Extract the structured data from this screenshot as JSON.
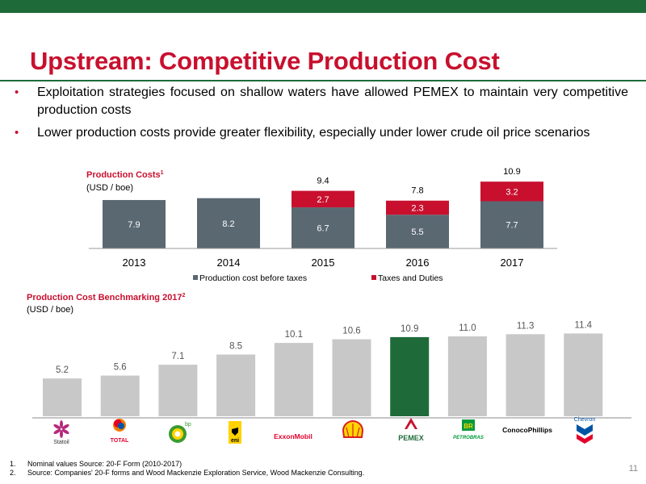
{
  "title": "Upstream: Competitive Production Cost",
  "bullets": [
    "Exploitation strategies focused on shallow waters have allowed PEMEX to maintain very competitive production costs",
    "Lower production costs provide greater flexibility, especially under lower crude oil price scenarios"
  ],
  "colors": {
    "accent": "#c8102e",
    "brand_green": "#1e6b39",
    "bar_slate": "#5a6872",
    "bar_gray": "#c8c8c8",
    "pemex_bar": "#1e6b39"
  },
  "chart_data": [
    {
      "type": "bar",
      "title": "Production Costs",
      "title_sup": "1",
      "subtitle": "(USD / boe)",
      "categories": [
        "2013",
        "2014",
        "2015",
        "2016",
        "2017"
      ],
      "series": [
        {
          "name": "Production cost before taxes",
          "values": [
            7.9,
            8.2,
            6.7,
            5.5,
            7.7
          ],
          "color": "#5a6872"
        },
        {
          "name": "Taxes and Duties",
          "values": [
            null,
            null,
            2.7,
            2.3,
            3.2
          ],
          "color": "#c8102e"
        }
      ],
      "segment_labels": {
        "base": [
          "7.9",
          "8.2",
          "6.7",
          "5.5",
          "7.7"
        ],
        "top": [
          "",
          "",
          "2.7",
          "2.3",
          "3.2"
        ]
      },
      "totals": [
        "",
        "",
        "9.4",
        "7.8",
        "10.9"
      ],
      "stacked": true,
      "legend": "bottom",
      "ylim": [
        0,
        11
      ]
    },
    {
      "type": "bar",
      "title": "Production Cost Benchmarking 2017",
      "title_sup": "2",
      "subtitle": "(USD / boe)",
      "categories": [
        "Statoil",
        "TOTAL",
        "bp",
        "eni",
        "ExxonMobil",
        "Shell",
        "PEMEX",
        "Petrobras",
        "ConocoPhillips",
        "Chevron"
      ],
      "values": [
        5.2,
        5.6,
        7.1,
        8.5,
        10.1,
        10.6,
        10.9,
        11.0,
        11.3,
        11.4
      ],
      "labels": [
        "5.2",
        "5.6",
        "7.1",
        "8.5",
        "10.1",
        "10.6",
        "10.9",
        "11.0",
        "11.3",
        "11.4"
      ],
      "highlight": "PEMEX",
      "ylim": [
        0,
        12
      ]
    }
  ],
  "logos": {
    "statoil": "Statoil",
    "total": "TOTAL",
    "bp": "bp",
    "eni": "eni",
    "exxon": "ExxonMobil",
    "pemex": "PEMEX",
    "petrobras": "PETROBRAS",
    "petrobras_br": "BR",
    "conoco": "ConocoPhillips",
    "chevron": "Chevron"
  },
  "footnotes": [
    {
      "num": "1.",
      "text": "Nominal values Source: 20-F Form (2010-2017)"
    },
    {
      "num": "2.",
      "text": "Source: Companies' 20-F forms and Wood Mackenzie Exploration Service, Wood Mackenzie Consulting."
    }
  ],
  "page_number": "11"
}
